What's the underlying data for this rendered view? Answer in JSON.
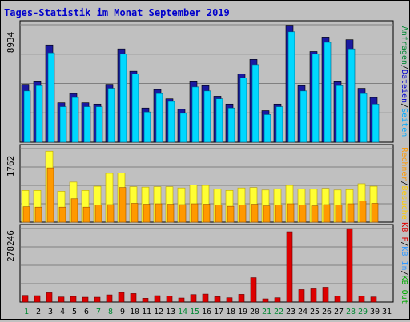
{
  "title": "Tages-Statistik im Monat September 2019",
  "colors": {
    "title": "#0000cc",
    "panel_bg": "#c0c0c0",
    "grid": "#808080",
    "anfragen": "#2222dd",
    "dateien": "#00d8ff",
    "seiten": "#ffff33",
    "rechner": "#ff9900",
    "kb_f": "#dd0000",
    "kb_in": "#3399ff",
    "kb_out": "#00aa00",
    "day_weekday": "#000000",
    "day_weekend": "#008833"
  },
  "legend": {
    "top": [
      {
        "text": "Anfragen",
        "color": "#008833"
      },
      {
        "text": "/",
        "color": "#000000"
      },
      {
        "text": "Dateien",
        "color": "#0000cc"
      },
      {
        "text": "/",
        "color": "#000000"
      },
      {
        "text": "Seiten",
        "color": "#00aaff"
      }
    ],
    "middle": [
      {
        "text": "Rechner",
        "color": "#ff9900"
      },
      {
        "text": "/",
        "color": "#000000"
      },
      {
        "text": "Besuche",
        "color": "#ffcc00"
      }
    ],
    "bottom": [
      {
        "text": "KB F",
        "color": "#dd0000"
      },
      {
        "text": "/",
        "color": "#000000"
      },
      {
        "text": "KB In",
        "color": "#3399ff"
      },
      {
        "text": "/",
        "color": "#000000"
      },
      {
        "text": "KB Out",
        "color": "#00aa00"
      }
    ]
  },
  "chart_data": {
    "type": "bar",
    "categories": [
      "1",
      "2",
      "3",
      "4",
      "5",
      "6",
      "7",
      "8",
      "9",
      "10",
      "11",
      "12",
      "13",
      "14",
      "15",
      "16",
      "17",
      "18",
      "19",
      "20",
      "21",
      "22",
      "23",
      "24",
      "25",
      "26",
      "27",
      "28",
      "29",
      "30",
      "31"
    ],
    "weekend_days": [
      "1",
      "7",
      "8",
      "14",
      "15",
      "21",
      "22",
      "28",
      "29"
    ],
    "panels": [
      {
        "ymax_label": "8934",
        "ymax": 8934,
        "series": [
          {
            "name": "Anfragen",
            "values": [
              4400,
              4600,
              7400,
              3000,
              3700,
              3000,
              2900,
              4400,
              7100,
              5400,
              2600,
              4000,
              3300,
              2500,
              4600,
              4300,
              3500,
              2900,
              5200,
              6300,
              2400,
              2900,
              8900,
              4300,
              6900,
              8000,
              4600,
              7800,
              4100,
              3400,
              0
            ]
          },
          {
            "name": "Dateien",
            "values": [
              3900,
              4300,
              6800,
              2700,
              3400,
              2700,
              2700,
              4100,
              6700,
              5200,
              2300,
              3700,
              3100,
              2200,
              4200,
              3900,
              3300,
              2600,
              4900,
              5900,
              2100,
              2700,
              8400,
              3900,
              6700,
              7600,
              4300,
              7100,
              3700,
              2900,
              0
            ]
          }
        ]
      },
      {
        "ymax_label": "1762",
        "ymax": 1762,
        "series": [
          {
            "name": "Besuche",
            "values": [
              760,
              760,
              1700,
              740,
              960,
              760,
              860,
              1170,
              1180,
              850,
              840,
              850,
              850,
              820,
              890,
              880,
              790,
              760,
              820,
              830,
              770,
              800,
              880,
              800,
              790,
              810,
              770,
              780,
              920,
              860,
              0
            ]
          },
          {
            "name": "Rechner",
            "values": [
              370,
              360,
              1300,
              360,
              560,
              360,
              410,
              420,
              830,
              450,
              430,
              440,
              430,
              420,
              440,
              430,
              410,
              380,
              410,
              430,
              390,
              410,
              440,
              410,
              390,
              420,
              410,
              440,
              510,
              450,
              0
            ]
          }
        ]
      },
      {
        "ymax_label": "278246",
        "ymax": 278246,
        "series": [
          {
            "name": "KB F",
            "values": [
              25000,
              24000,
              35000,
              19000,
              21000,
              18000,
              18000,
              27000,
              36000,
              32000,
              14000,
              24000,
              23000,
              15000,
              28000,
              30000,
              20000,
              16000,
              29000,
              92000,
              12000,
              16000,
              266000,
              47000,
              50000,
              56000,
              23000,
              278000,
              22000,
              19000,
              0
            ]
          }
        ]
      }
    ]
  }
}
